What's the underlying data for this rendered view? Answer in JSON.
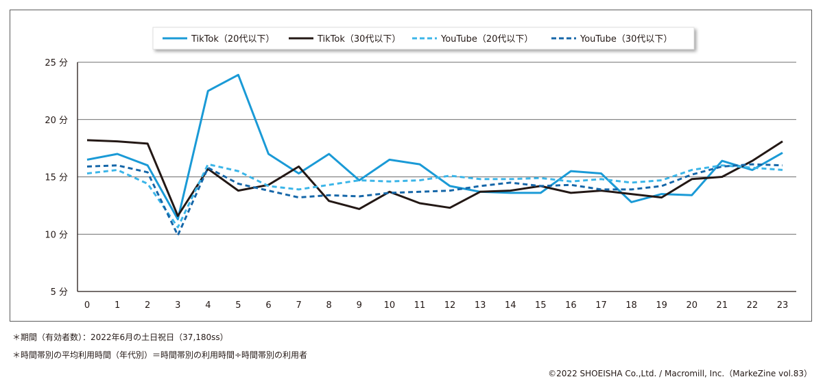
{
  "chart_data": {
    "type": "line",
    "title": "",
    "xlabel": "",
    "ylabel": "",
    "x": [
      "0",
      "1",
      "2",
      "3",
      "4",
      "5",
      "6",
      "7",
      "8",
      "9",
      "10",
      "11",
      "12",
      "13",
      "14",
      "15",
      "16",
      "17",
      "18",
      "19",
      "20",
      "21",
      "22",
      "23"
    ],
    "y_ticks": [
      {
        "value": 5,
        "label": "5 分"
      },
      {
        "value": 10,
        "label": "10 分"
      },
      {
        "value": 15,
        "label": "15 分"
      },
      {
        "value": 20,
        "label": "20 分"
      },
      {
        "value": 25,
        "label": "25 分"
      }
    ],
    "ylim": [
      5,
      25
    ],
    "grid": true,
    "legend_position": "top-center",
    "series": [
      {
        "name": "TikTok（20代以下）",
        "color": "#1a9ad6",
        "dashed": false,
        "values": [
          16.5,
          17.0,
          16.0,
          11.3,
          22.5,
          23.9,
          17.0,
          15.3,
          17.0,
          14.7,
          16.5,
          16.1,
          14.2,
          13.7,
          13.6,
          13.6,
          15.5,
          15.3,
          12.8,
          13.5,
          13.4,
          16.4,
          15.6,
          17.1
        ]
      },
      {
        "name": "TikTok（30代以下）",
        "color": "#231815",
        "dashed": false,
        "values": [
          18.2,
          18.1,
          17.9,
          11.6,
          15.7,
          13.8,
          14.3,
          15.9,
          12.9,
          12.2,
          13.7,
          12.7,
          12.3,
          13.7,
          13.8,
          14.2,
          13.6,
          13.8,
          13.5,
          13.2,
          14.8,
          15.0,
          16.4,
          18.1
        ]
      },
      {
        "name": "YouTube（20代以下）",
        "color": "#3bb5e8",
        "dashed": true,
        "values": [
          15.3,
          15.6,
          14.4,
          10.6,
          16.1,
          15.5,
          14.2,
          13.9,
          14.3,
          14.7,
          14.6,
          14.7,
          15.1,
          14.8,
          14.8,
          14.9,
          14.6,
          14.8,
          14.5,
          14.7,
          15.6,
          16.0,
          15.8,
          15.6
        ]
      },
      {
        "name": "YouTube（30代以下）",
        "color": "#1566a8",
        "dashed": true,
        "values": [
          15.9,
          16.0,
          15.4,
          9.9,
          15.8,
          14.4,
          13.8,
          13.2,
          13.4,
          13.3,
          13.6,
          13.7,
          13.8,
          14.2,
          14.5,
          14.2,
          14.3,
          13.9,
          13.9,
          14.2,
          15.2,
          15.9,
          16.1,
          16.0
        ]
      }
    ]
  },
  "notes": {
    "period": "＊期間（有効者数）：2022年6月の土日祝日（37,180ss）",
    "definition": "＊時間帯別の平均利用時間（年代別）＝時間帯別の利用時間÷時間帯別の利用者"
  },
  "copyright": "©2022 SHOEISHA Co.,Ltd. / Macromill, Inc.（MarkeZine vol.83）"
}
